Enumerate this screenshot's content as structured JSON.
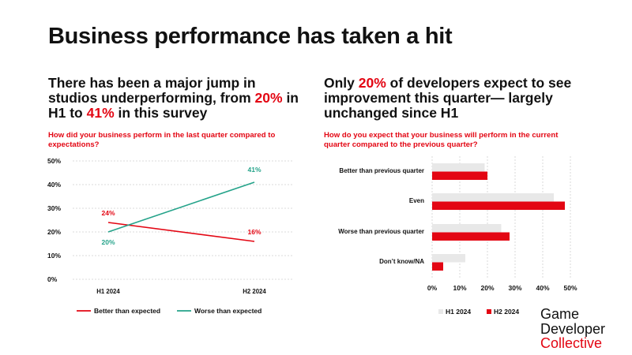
{
  "page_title": "Business performance has taken a hit",
  "left_panel": {
    "title_parts": [
      "There has been a major jump in studios underperforming, from ",
      "20%",
      " in H1 to ",
      "41%",
      " in this survey"
    ],
    "question": "How did your business perform in the last quarter compared to expectations?"
  },
  "right_panel": {
    "title_parts": [
      "Only ",
      "20%",
      " of developers expect to see improvement this quarter— largely unchanged since H1"
    ],
    "question": "How do you expect that your business will perform in the current quarter compared to the previous quarter?"
  },
  "logo": {
    "line1": "Game",
    "line2": "Developer",
    "line3": "Collective"
  },
  "colors": {
    "red": "#e30613",
    "green": "#25a38a",
    "grey": "#e8e8e8",
    "text": "#111111"
  },
  "chart_data": [
    {
      "type": "line",
      "categories": [
        "H1 2024",
        "H2 2024"
      ],
      "series": [
        {
          "name": "Better than expected",
          "values": [
            24,
            16
          ],
          "labels": [
            "24%",
            "16%"
          ],
          "color": "#e30613"
        },
        {
          "name": "Worse than expected",
          "values": [
            20,
            41
          ],
          "labels": [
            "20%",
            "41%"
          ],
          "color": "#25a38a"
        }
      ],
      "yticks": [
        "0%",
        "10%",
        "20%",
        "30%",
        "40%",
        "50%"
      ],
      "ylim": [
        0,
        50
      ],
      "grid": "horizontal dashed",
      "legend": "bottom"
    },
    {
      "type": "bar",
      "orientation": "horizontal",
      "categories": [
        "Better than previous quarter",
        "Even",
        "Worse than previous quarter",
        "Don’t know/NA"
      ],
      "series": [
        {
          "name": "H1 2024",
          "values": [
            19,
            44,
            25,
            12
          ],
          "color": "#e8e8e8"
        },
        {
          "name": "H2 2024",
          "values": [
            20,
            48,
            28,
            4
          ],
          "color": "#e30613"
        }
      ],
      "xticks": [
        "0%",
        "10%",
        "20%",
        "30%",
        "40%",
        "50%"
      ],
      "xlim": [
        0,
        50
      ],
      "grid": "vertical dashed",
      "legend": "bottom-left"
    }
  ]
}
